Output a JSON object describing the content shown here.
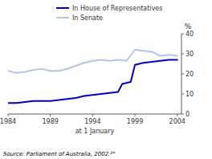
{
  "chart_data": {
    "type": "line",
    "ylabel": "%",
    "xlabel": "at 1 January",
    "source": "Source: Parliament of Australia, 2002.²°",
    "xlim": [
      1984,
      2004.5
    ],
    "ylim": [
      0,
      40
    ],
    "xticks": [
      1984,
      1989,
      1994,
      1999,
      2004
    ],
    "yticks": [
      0,
      10,
      20,
      30,
      40
    ],
    "grid": false,
    "legend": "top",
    "series": [
      {
        "name": "In House of Representatives",
        "color": "#0000cc",
        "x": [
          1984,
          1985,
          1986,
          1987,
          1988,
          1989,
          1990,
          1991,
          1992,
          1993,
          1994,
          1995,
          1996,
          1997,
          1997.5,
          1998,
          1998.5,
          1999,
          1999.5,
          2000,
          2001,
          2002,
          2003,
          2004
        ],
        "values": [
          5.5,
          5.5,
          6.0,
          6.5,
          6.5,
          6.5,
          7.0,
          7.5,
          8.0,
          9.0,
          9.5,
          10.0,
          10.5,
          11.0,
          15.0,
          15.5,
          16.0,
          24.5,
          25.0,
          25.5,
          26.0,
          26.5,
          27.0,
          27.0
        ]
      },
      {
        "name": "In Senate",
        "color": "#b0c8e8",
        "x": [
          1984,
          1985,
          1986,
          1987,
          1988,
          1989,
          1990,
          1991,
          1992,
          1993,
          1994,
          1995,
          1996,
          1997,
          1998,
          1999,
          2000,
          2001,
          2002,
          2003,
          2004
        ],
        "values": [
          21.5,
          20.5,
          21.0,
          22.0,
          22.5,
          21.5,
          21.5,
          22.5,
          24.0,
          25.5,
          26.5,
          27.0,
          26.5,
          27.0,
          26.5,
          32.0,
          31.5,
          31.0,
          29.0,
          29.5,
          29.0
        ]
      }
    ]
  }
}
